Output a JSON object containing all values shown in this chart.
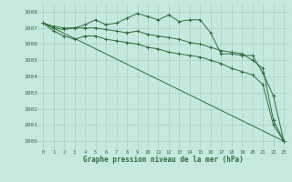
{
  "xlabel": "Graphe pression niveau de la mer (hPa)",
  "bg_color": "#c5e8df",
  "grid_color": "#aacfc5",
  "line_color": "#2d6e3a",
  "text_color": "#2d6e3a",
  "ylim": [
    999.5,
    1008.5
  ],
  "xlim": [
    -0.5,
    23.5
  ],
  "yticks": [
    1000,
    1001,
    1002,
    1003,
    1004,
    1005,
    1006,
    1007,
    1008
  ],
  "xticks": [
    0,
    1,
    2,
    3,
    4,
    5,
    6,
    7,
    8,
    9,
    10,
    11,
    12,
    13,
    14,
    15,
    16,
    17,
    18,
    19,
    20,
    21,
    22,
    23
  ],
  "series": [
    {
      "x": [
        0,
        1,
        2,
        3,
        4,
        5,
        6,
        7,
        8,
        9,
        10,
        11,
        12,
        13,
        14,
        15,
        16,
        17,
        18,
        19,
        20,
        21,
        22,
        23
      ],
      "y": [
        1007.3,
        1007.1,
        1007.0,
        1007.0,
        1007.2,
        1007.5,
        1007.2,
        1007.3,
        1007.6,
        1007.9,
        1007.7,
        1007.5,
        1007.8,
        1007.4,
        1007.5,
        1007.5,
        1006.7,
        1005.4,
        1005.4,
        1005.3,
        1005.3,
        1004.2,
        1002.8,
        1000.0
      ],
      "marker": "+"
    },
    {
      "x": [
        0,
        1,
        2,
        3,
        4,
        5,
        6,
        7,
        8,
        9,
        10,
        11,
        12,
        13,
        14,
        15,
        16,
        17,
        18,
        19,
        20,
        21,
        22,
        23
      ],
      "y": [
        1007.3,
        1007.0,
        1006.9,
        1007.0,
        1007.0,
        1007.0,
        1006.9,
        1006.8,
        1006.7,
        1006.8,
        1006.6,
        1006.5,
        1006.4,
        1006.3,
        1006.1,
        1006.0,
        1005.8,
        1005.6,
        1005.5,
        1005.4,
        1005.0,
        1004.5,
        1001.3,
        1000.0
      ],
      "marker": "+"
    },
    {
      "x": [
        0,
        1,
        2,
        3,
        4,
        5,
        6,
        7,
        8,
        9,
        10,
        11,
        12,
        13,
        14,
        15,
        16,
        17,
        18,
        19,
        20,
        21,
        22,
        23
      ],
      "y": [
        1007.3,
        1006.8,
        1006.5,
        1006.3,
        1006.5,
        1006.5,
        1006.3,
        1006.2,
        1006.1,
        1006.0,
        1005.8,
        1005.7,
        1005.5,
        1005.4,
        1005.3,
        1005.2,
        1005.0,
        1004.8,
        1004.5,
        1004.3,
        1004.1,
        1003.5,
        1001.0,
        1000.0
      ],
      "marker": "+"
    },
    {
      "x": [
        0,
        23
      ],
      "y": [
        1007.3,
        1000.0
      ],
      "marker": null
    }
  ]
}
